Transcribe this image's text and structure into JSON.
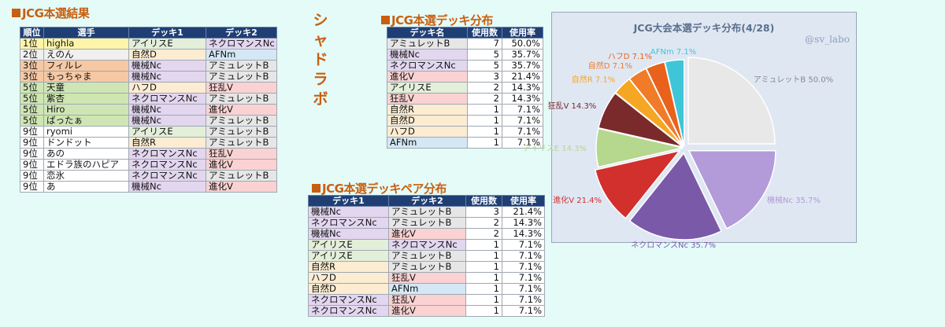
{
  "results": {
    "title": "JCG本選結果",
    "headers": [
      "順位",
      "選手",
      "デッキ1",
      "デッキ2"
    ],
    "rows": [
      [
        "1位",
        "highla",
        "アイリスE",
        "ネクロマンスNc"
      ],
      [
        "2位",
        "えのん",
        "自然D",
        "AFNm"
      ],
      [
        "3位",
        "フィルレ",
        "機械Nc",
        "アミュレットB"
      ],
      [
        "3位",
        "もっちゃま",
        "機械Nc",
        "アミュレットB"
      ],
      [
        "5位",
        "天童",
        "ハフD",
        "狂乱V"
      ],
      [
        "5位",
        "紫杏",
        "ネクロマンスNc",
        "アミュレットB"
      ],
      [
        "5位",
        "Hiro",
        "機械Nc",
        "進化V"
      ],
      [
        "5位",
        "ばったぁ",
        "機械Nc",
        "アミュレットB"
      ],
      [
        "9位",
        "ryomi",
        "アイリスE",
        "アミュレットB"
      ],
      [
        "9位",
        "ドンドット",
        "自然R",
        "アミュレットB"
      ],
      [
        "9位",
        "あの",
        "ネクロマンスNc",
        "狂乱V"
      ],
      [
        "9位",
        "エドラ族のハピア",
        "ネクロマンスNc",
        "進化V"
      ],
      [
        "9位",
        "恋氷",
        "ネクロマンスNc",
        "アミュレットB"
      ],
      [
        "9位",
        "あ",
        "機械Nc",
        "進化V"
      ]
    ]
  },
  "vertical_title": "シャドラボ",
  "distribution": {
    "title": "JCG本選デッキ分布",
    "headers": [
      "デッキ名",
      "使用数",
      "使用率"
    ],
    "rows": [
      [
        "アミュレットB",
        "7",
        "50.0%"
      ],
      [
        "機械Nc",
        "5",
        "35.7%"
      ],
      [
        "ネクロマンスNc",
        "5",
        "35.7%"
      ],
      [
        "進化V",
        "3",
        "21.4%"
      ],
      [
        "アイリスE",
        "2",
        "14.3%"
      ],
      [
        "狂乱V",
        "2",
        "14.3%"
      ],
      [
        "自然R",
        "1",
        "7.1%"
      ],
      [
        "自然D",
        "1",
        "7.1%"
      ],
      [
        "ハフD",
        "1",
        "7.1%"
      ],
      [
        "AFNm",
        "1",
        "7.1%"
      ]
    ]
  },
  "pairs": {
    "title": "JCG本選デッキペア分布",
    "headers": [
      "デッキ1",
      "デッキ2",
      "使用数",
      "使用率"
    ],
    "rows": [
      [
        "機械Nc",
        "アミュレットB",
        "3",
        "21.4%"
      ],
      [
        "ネクロマンスNc",
        "アミュレットB",
        "2",
        "14.3%"
      ],
      [
        "機械Nc",
        "進化V",
        "2",
        "14.3%"
      ],
      [
        "アイリスE",
        "ネクロマンスNc",
        "1",
        "7.1%"
      ],
      [
        "アイリスE",
        "アミュレットB",
        "1",
        "7.1%"
      ],
      [
        "自然R",
        "アミュレットB",
        "1",
        "7.1%"
      ],
      [
        "ハフD",
        "狂乱V",
        "1",
        "7.1%"
      ],
      [
        "自然D",
        "AFNm",
        "1",
        "7.1%"
      ],
      [
        "ネクロマンスNc",
        "狂乱V",
        "1",
        "7.1%"
      ],
      [
        "ネクロマンスNc",
        "進化V",
        "1",
        "7.1%"
      ]
    ]
  },
  "deck_colors": {
    "アイリスE": "#e3efd9",
    "ネクロマンスNc": "#e3d6ef",
    "自然D": "#fbecd2",
    "自然R": "#fbecd2",
    "AFNm": "#d4e7f5",
    "機械Nc": "#e3d6ef",
    "アミュレットB": "#e6e6e6",
    "ハフD": "#fbecd2",
    "狂乱V": "#fad2d2",
    "進化V": "#fad2d2"
  },
  "rank_colors": {
    "1位": "#fef5a8",
    "2位": "#f0f0f0",
    "3位": "#f6c8a4",
    "5位": "#cfe6b4",
    "9位": "#ffffff"
  },
  "chart_data": {
    "type": "pie",
    "title": "JCG大会本選デッキ分布(4/28)",
    "watermark": "@sv_labo",
    "slices": [
      {
        "label": "アミュレットB",
        "value": 7,
        "pct": "50.0%",
        "color": "#e8e8e8"
      },
      {
        "label": "機械Nc",
        "value": 5,
        "pct": "35.7%",
        "color": "#b39ad8"
      },
      {
        "label": "ネクロマンスNc",
        "value": 5,
        "pct": "35.7%",
        "color": "#7a5aa8"
      },
      {
        "label": "進化V",
        "value": 3,
        "pct": "21.4%",
        "color": "#d2302c"
      },
      {
        "label": "アイリスE",
        "value": 2,
        "pct": "14.3%",
        "color": "#b5d78e"
      },
      {
        "label": "狂乱V",
        "value": 2,
        "pct": "14.3%",
        "color": "#7a2a2a"
      },
      {
        "label": "自然R",
        "value": 1,
        "pct": "7.1%",
        "color": "#f5a623"
      },
      {
        "label": "自然D",
        "value": 1,
        "pct": "7.1%",
        "color": "#f07b28"
      },
      {
        "label": "ハフD",
        "value": 1,
        "pct": "7.1%",
        "color": "#e8621c"
      },
      {
        "label": "AFNm",
        "value": 1,
        "pct": "7.1%",
        "color": "#3ec6d8"
      }
    ]
  }
}
